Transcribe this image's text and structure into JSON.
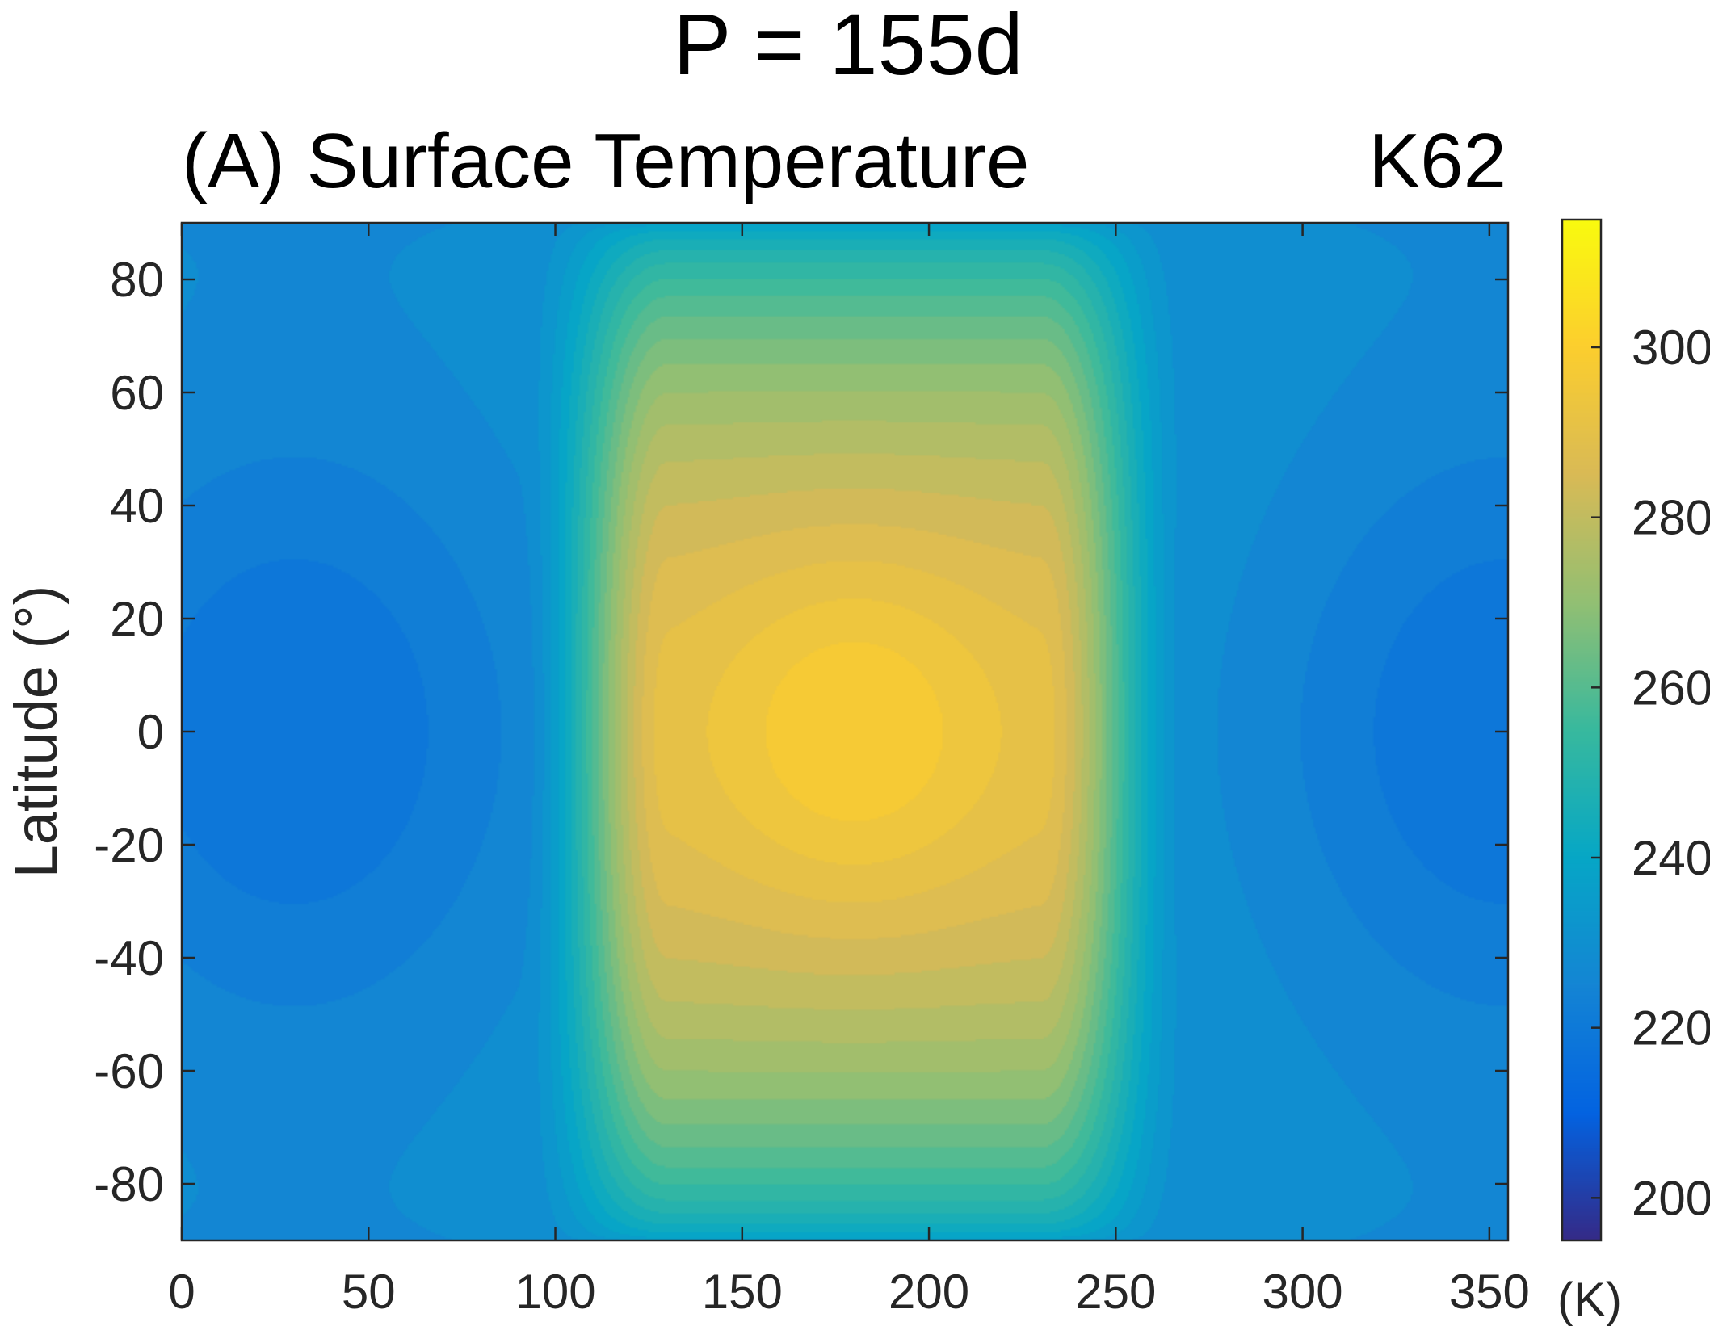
{
  "figure_title": "P = 155d",
  "panel_title": "(A) Surface Temperature",
  "panel_tag": "K62",
  "chart_data": {
    "type": "heatmap",
    "title": "(A) Surface Temperature",
    "xlabel": "",
    "ylabel": "Latitude (°)",
    "xlim": [
      0,
      355
    ],
    "ylim": [
      -90,
      90
    ],
    "x_ticks": [
      0,
      50,
      100,
      150,
      200,
      250,
      300,
      350
    ],
    "x_tick_labels": [
      "0",
      "50",
      "100",
      "150",
      "200",
      "250",
      "300",
      "350"
    ],
    "y_ticks": [
      80,
      60,
      40,
      20,
      0,
      -20,
      -40,
      -60,
      -80
    ],
    "y_tick_labels": [
      "80",
      "60",
      "40",
      "20",
      "0",
      "-20",
      "-40",
      "-60",
      "-80"
    ],
    "colorbar": {
      "label": "(K)",
      "range": [
        195,
        315
      ],
      "ticks": [
        200,
        220,
        240,
        260,
        280,
        300
      ],
      "tick_labels": [
        "200",
        "220",
        "240",
        "260",
        "280",
        "300"
      ],
      "colormap": "parula",
      "colormap_stops": [
        "#352a87",
        "#0363e1",
        "#1485d4",
        "#06a7c6",
        "#38b99e",
        "#92bf73",
        "#d9ba56",
        "#fcce2e",
        "#f9fb0e"
      ]
    },
    "field_description": {
      "substellar_longitude": 180,
      "substellar_latitude": 0,
      "max_temperature_K": 299,
      "dayside_longitude_range": [
        92,
        268
      ],
      "nightside_min_temperature_K": 217,
      "nightside_cold_centers": [
        {
          "lon": 30,
          "lat": 0
        },
        {
          "lon": 355,
          "lat": 0
        }
      ]
    }
  }
}
